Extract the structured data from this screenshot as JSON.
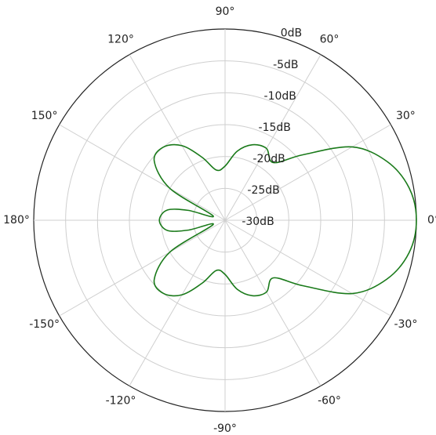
{
  "chart_data": {
    "type": "line",
    "subtype": "polar",
    "title": "",
    "angular_ticks": [
      {
        "angle": 0,
        "label": "0°"
      },
      {
        "angle": 30,
        "label": "30°"
      },
      {
        "angle": 60,
        "label": "60°"
      },
      {
        "angle": 90,
        "label": "90°"
      },
      {
        "angle": 120,
        "label": "120°"
      },
      {
        "angle": 150,
        "label": "150°"
      },
      {
        "angle": 180,
        "label": "180°"
      },
      {
        "angle": -150,
        "label": "-150°"
      },
      {
        "angle": -120,
        "label": "-120°"
      },
      {
        "angle": -90,
        "label": "-90°"
      },
      {
        "angle": -60,
        "label": "-60°"
      },
      {
        "angle": -30,
        "label": "-30°"
      }
    ],
    "radial_ticks": [
      {
        "value": 0,
        "label": "0dB"
      },
      {
        "value": -5,
        "label": "-5dB"
      },
      {
        "value": -10,
        "label": "-10dB"
      },
      {
        "value": -15,
        "label": "-15dB"
      },
      {
        "value": -20,
        "label": "-20dB"
      },
      {
        "value": -25,
        "label": "-25dB"
      },
      {
        "value": -30,
        "label": "-30dB"
      }
    ],
    "radial_range_db": [
      -30,
      0
    ],
    "radial_label_angle": 80,
    "grid": true,
    "series": [
      {
        "color": "#1a7a1a",
        "points": [
          {
            "angle": 0,
            "db": 0
          },
          {
            "angle": 10,
            "db": -0.7
          },
          {
            "angle": 20,
            "db": -3
          },
          {
            "angle": 30,
            "db": -7
          },
          {
            "angle": 40,
            "db": -14
          },
          {
            "angle": 50,
            "db": -18.2
          },
          {
            "angle": 60,
            "db": -17
          },
          {
            "angle": 70,
            "db": -17.4
          },
          {
            "angle": 80,
            "db": -19
          },
          {
            "angle": 90,
            "db": -21.5
          },
          {
            "angle": 100,
            "db": -22
          },
          {
            "angle": 110,
            "db": -19.5
          },
          {
            "angle": 120,
            "db": -16.5
          },
          {
            "angle": 130,
            "db": -15
          },
          {
            "angle": 140,
            "db": -15.5
          },
          {
            "angle": 150,
            "db": -20
          },
          {
            "angle": 160,
            "db": -28
          },
          {
            "angle": 165,
            "db": -24
          },
          {
            "angle": 170,
            "db": -20.8
          },
          {
            "angle": 180,
            "db": -19.7
          },
          {
            "angle": -170,
            "db": -20.8
          },
          {
            "angle": -165,
            "db": -24
          },
          {
            "angle": -160,
            "db": -28
          },
          {
            "angle": -150,
            "db": -20
          },
          {
            "angle": -140,
            "db": -15.5
          },
          {
            "angle": -130,
            "db": -15
          },
          {
            "angle": -120,
            "db": -16.5
          },
          {
            "angle": -110,
            "db": -19.5
          },
          {
            "angle": -100,
            "db": -22
          },
          {
            "angle": -90,
            "db": -21.5
          },
          {
            "angle": -80,
            "db": -19
          },
          {
            "angle": -70,
            "db": -17.4
          },
          {
            "angle": -60,
            "db": -17
          },
          {
            "angle": -50,
            "db": -18.2
          },
          {
            "angle": -40,
            "db": -14
          },
          {
            "angle": -30,
            "db": -7
          },
          {
            "angle": -20,
            "db": -3
          },
          {
            "angle": -10,
            "db": -0.7
          }
        ]
      }
    ]
  }
}
